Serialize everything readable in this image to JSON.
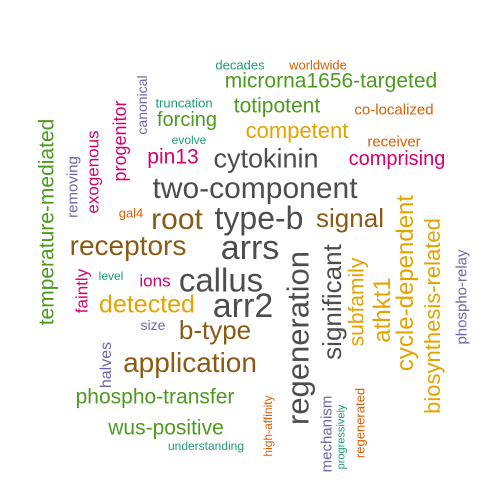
{
  "colors": {
    "dark_gray": "#4d4d4d",
    "brown": "#8b5a14",
    "gold": "#e5a300",
    "green": "#4e9a1f",
    "magenta": "#d6006e",
    "purple": "#6f66a8",
    "orange": "#d95f02",
    "teal": "#1b9e77"
  },
  "words": [
    {
      "text": "decades",
      "color": "#1b9e77"
    },
    {
      "text": "worldwide",
      "color": "#d95f02"
    },
    {
      "text": "microrna1656-targeted",
      "color": "#4e9a1f"
    },
    {
      "text": "truncation",
      "color": "#1b9e77"
    },
    {
      "text": "totipotent",
      "color": "#4e9a1f"
    },
    {
      "text": "co-localized",
      "color": "#d95f02"
    },
    {
      "text": "forcing",
      "color": "#4e9a1f"
    },
    {
      "text": "competent",
      "color": "#e5a300"
    },
    {
      "text": "evolve",
      "color": "#1b9e77"
    },
    {
      "text": "receiver",
      "color": "#d95f02"
    },
    {
      "text": "pin13",
      "color": "#d6006e"
    },
    {
      "text": "cytokinin",
      "color": "#4d4d4d"
    },
    {
      "text": "comprising",
      "color": "#d6006e"
    },
    {
      "text": "two-component",
      "color": "#4d4d4d"
    },
    {
      "text": "gal4",
      "color": "#d95f02"
    },
    {
      "text": "root",
      "color": "#8b5a14"
    },
    {
      "text": "type-b",
      "color": "#4d4d4d"
    },
    {
      "text": "signal",
      "color": "#8b5a14"
    },
    {
      "text": "receptors",
      "color": "#8b5a14"
    },
    {
      "text": "arrs",
      "color": "#4d4d4d"
    },
    {
      "text": "level",
      "color": "#1b9e77"
    },
    {
      "text": "ions",
      "color": "#d6006e"
    },
    {
      "text": "callus",
      "color": "#4d4d4d"
    },
    {
      "text": "detected",
      "color": "#e5a300"
    },
    {
      "text": "arr2",
      "color": "#4d4d4d"
    },
    {
      "text": "size",
      "color": "#6f66a8"
    },
    {
      "text": "b-type",
      "color": "#8b5a14"
    },
    {
      "text": "application",
      "color": "#8b5a14"
    },
    {
      "text": "phospho-transfer",
      "color": "#4e9a1f"
    },
    {
      "text": "wus-positive",
      "color": "#4e9a1f"
    },
    {
      "text": "understanding",
      "color": "#1b9e77"
    },
    {
      "text": "temperature-mediated",
      "color": "#4e9a1f"
    },
    {
      "text": "removing",
      "color": "#6f66a8"
    },
    {
      "text": "exogenous",
      "color": "#d6006e"
    },
    {
      "text": "progenitor",
      "color": "#d6006e"
    },
    {
      "text": "canonical",
      "color": "#6f66a8"
    },
    {
      "text": "faintly",
      "color": "#d6006e"
    },
    {
      "text": "halves",
      "color": "#6f66a8"
    },
    {
      "text": "regeneration",
      "color": "#4d4d4d"
    },
    {
      "text": "significant",
      "color": "#4d4d4d"
    },
    {
      "text": "subfamily",
      "color": "#e5a300"
    },
    {
      "text": "athkt1",
      "color": "#e5a300"
    },
    {
      "text": "cycle-dependent",
      "color": "#e5a300"
    },
    {
      "text": "biosynthesis-related",
      "color": "#e5a300"
    },
    {
      "text": "phospho-relay",
      "color": "#6f66a8"
    },
    {
      "text": "high-affinity",
      "color": "#d95f02"
    },
    {
      "text": "mechanism",
      "color": "#6f66a8"
    },
    {
      "text": "progressively",
      "color": "#1b9e77"
    },
    {
      "text": "regenerated",
      "color": "#d95f02"
    }
  ]
}
